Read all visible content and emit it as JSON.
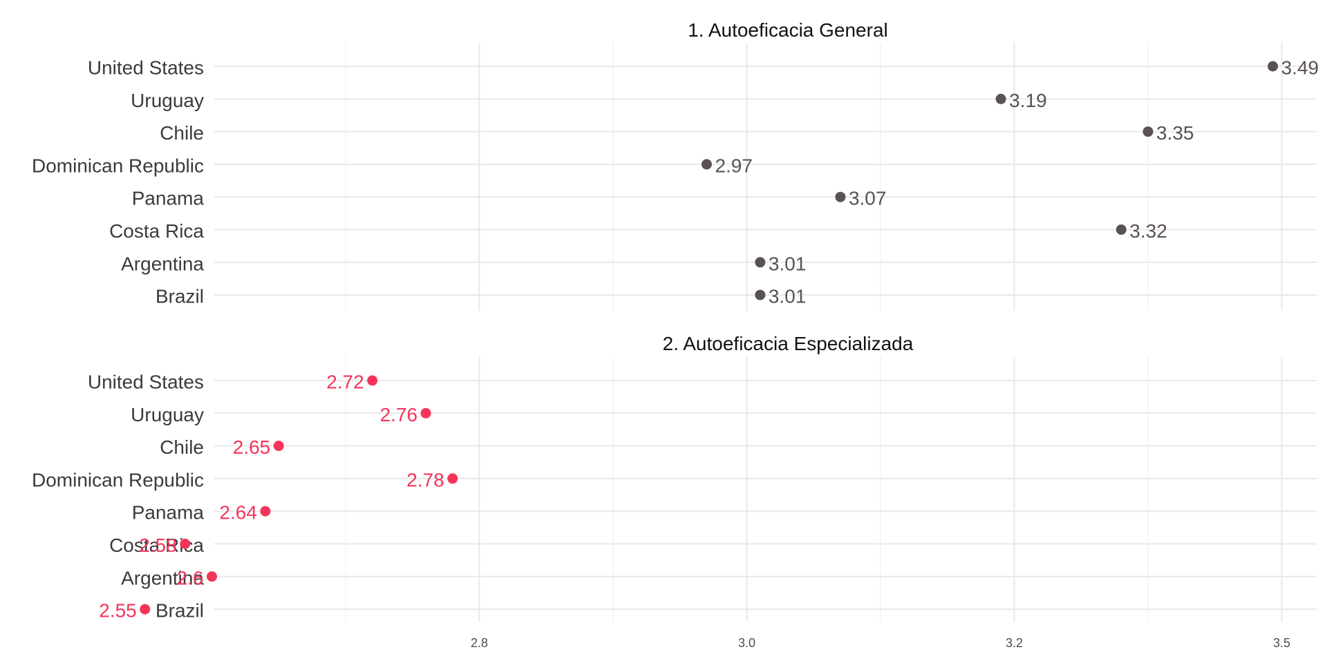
{
  "chart_data": {
    "type": "scatter",
    "x_ticks": [
      "2.8",
      "3.0",
      "3.2",
      "3.5"
    ],
    "categories": [
      "United States",
      "Uruguay",
      "Chile",
      "Dominican Republic",
      "Panama",
      "Costa Rica",
      "Argentina",
      "Brazil"
    ],
    "panels": [
      {
        "title": "1. Autoeficacia General",
        "color": "#595154",
        "label_side": "right",
        "values": [
          3.49,
          3.19,
          3.35,
          2.97,
          3.07,
          3.32,
          3.01,
          3.01
        ],
        "labels": [
          "3.49",
          "3.19",
          "3.35",
          "2.97",
          "3.07",
          "3.32",
          "3.01",
          "3.01"
        ]
      },
      {
        "title": "2. Autoeficacia Especializada",
        "color": "#f5345a",
        "label_side": "left",
        "values": [
          2.72,
          2.76,
          2.65,
          2.78,
          2.64,
          2.58,
          2.6,
          2.55
        ],
        "labels": [
          "2.72",
          "2.76",
          "2.65",
          "2.78",
          "2.64",
          "2.58",
          "2.6",
          "2.55"
        ]
      }
    ],
    "grid": true,
    "legend": "none"
  }
}
